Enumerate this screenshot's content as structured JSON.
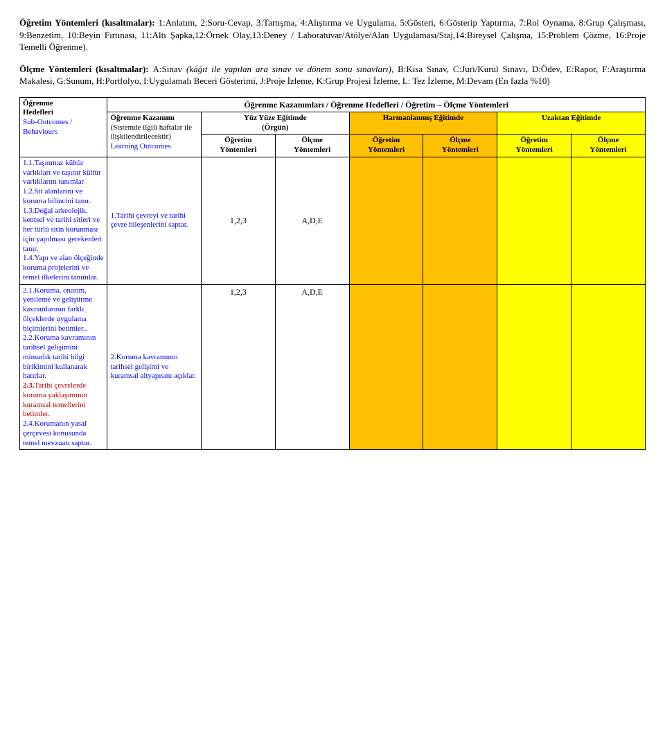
{
  "para1": {
    "lead": "Öğretim Yöntemleri (kısaltmalar): ",
    "body": "1:Anlatım, 2:Soru-Cevap, 3:Tartışma, 4:Alıştırma ve Uygulama, 5:Gösteri, 6:Gösterip Yaptırma, 7:Rol Oynama, 8:Grup Çalışması, 9:Benzetim, 10:Beyin Fırtınası, 11:Altı Şapka,12:Örnek Olay,13:Deney / Laboratuvar/Atölye/Alan Uygulaması/Staj,14:Bireysel Çalışma, 15:Problem Çözme, 16:Proje Temelli Öğrenme)."
  },
  "para2": {
    "lead": "Ölçme Yöntemleri (kısaltmalar): ",
    "midA": "A:Sınav ",
    "italic": "(kâğıt ile yapılan ara sınav ve dönem sonu sınavları)",
    "midB": ", B:Kısa Sınav, C:Juri/Kurul Sınavı, D:Ödev, E:Rapor, F:Araştırma Makalesi, G:Sunum, H:Portfolyo, I:Uygulamalı Beceri Gösterimi, J:Proje İzleme, K:Grup Projesi İzleme, L: Tez İzleme, M:Devam (En fazla %10)"
  },
  "table": {
    "topHeader": "Öğrenme Kazanımları / Öğrenme Hedefleri / Öğretim – Ölçme Yöntemleri",
    "col1": {
      "l1": "Öğrenme",
      "l2": "Hedefleri",
      "l3": "Sub-Outcomes /",
      "l4": "Behaviours"
    },
    "col2": {
      "l1": "Öğrenme Kazanımı",
      "l2": "(Sistemde ilgili haftalar ile ilişkilendirilecektir)",
      "l3": "Learning Outcomes"
    },
    "yuz1": "Yüz Yüze Eğitimde",
    "yuz2": "(Örgün)",
    "harman": "Harmanlanmış Eğitimde",
    "uzak": "Uzaktan Eğitimde",
    "sub": {
      "ogretim": "Öğretim",
      "olcme": "Ölçme",
      "yont": "Yöntemleri"
    },
    "row1": {
      "left": {
        "a": "1.1.Taşınmaz kültür varlıkları ve taşınır kültür varlıklarını tanımlar",
        "b": "1.2.Sit alanlarını ve koruma bilincini tanır.",
        "c": "1.3.Doğal arkeolojik, kentsel ve tarihi sitleri ve her türlü sitin korunması için yapılması gerekenleri tanır.",
        "d": "1.4.Yapı ve alan ölçeğinde koruma projelerini ve temel ilkelerini tanımlar."
      },
      "outcome": "1.Tarihi çevreyi ve tarihi çevre bileşenlerini saptar.",
      "teach": "1,2,3",
      "meas": "A,D,E"
    },
    "row2": {
      "left": {
        "a": "2.1.Koruma, onarım, yenileme ve geliştirme kavramlarının farklı ölçeklerde uygulama biçimlerini betimler..",
        "b": "2.2.Koruma kavramının tarihsel gelişimini mimarlık tarihi bilgi birikimini kullanarak hatırlar.",
        "c_lead": "2.3.",
        "c_body": "Tarihi çevrelerde koruma yaklaşımının kuramsal temellerini betimler.",
        "d": "2.4.Korumanın yasal çerçevesi konusunda temel mevzuatı saptar."
      },
      "outcome": "2.Koruma kavramının tarihsel gelişimi ve kuramsal altyapısını açıklar.",
      "teach": "1,2,3",
      "meas": "A,D,E"
    }
  }
}
